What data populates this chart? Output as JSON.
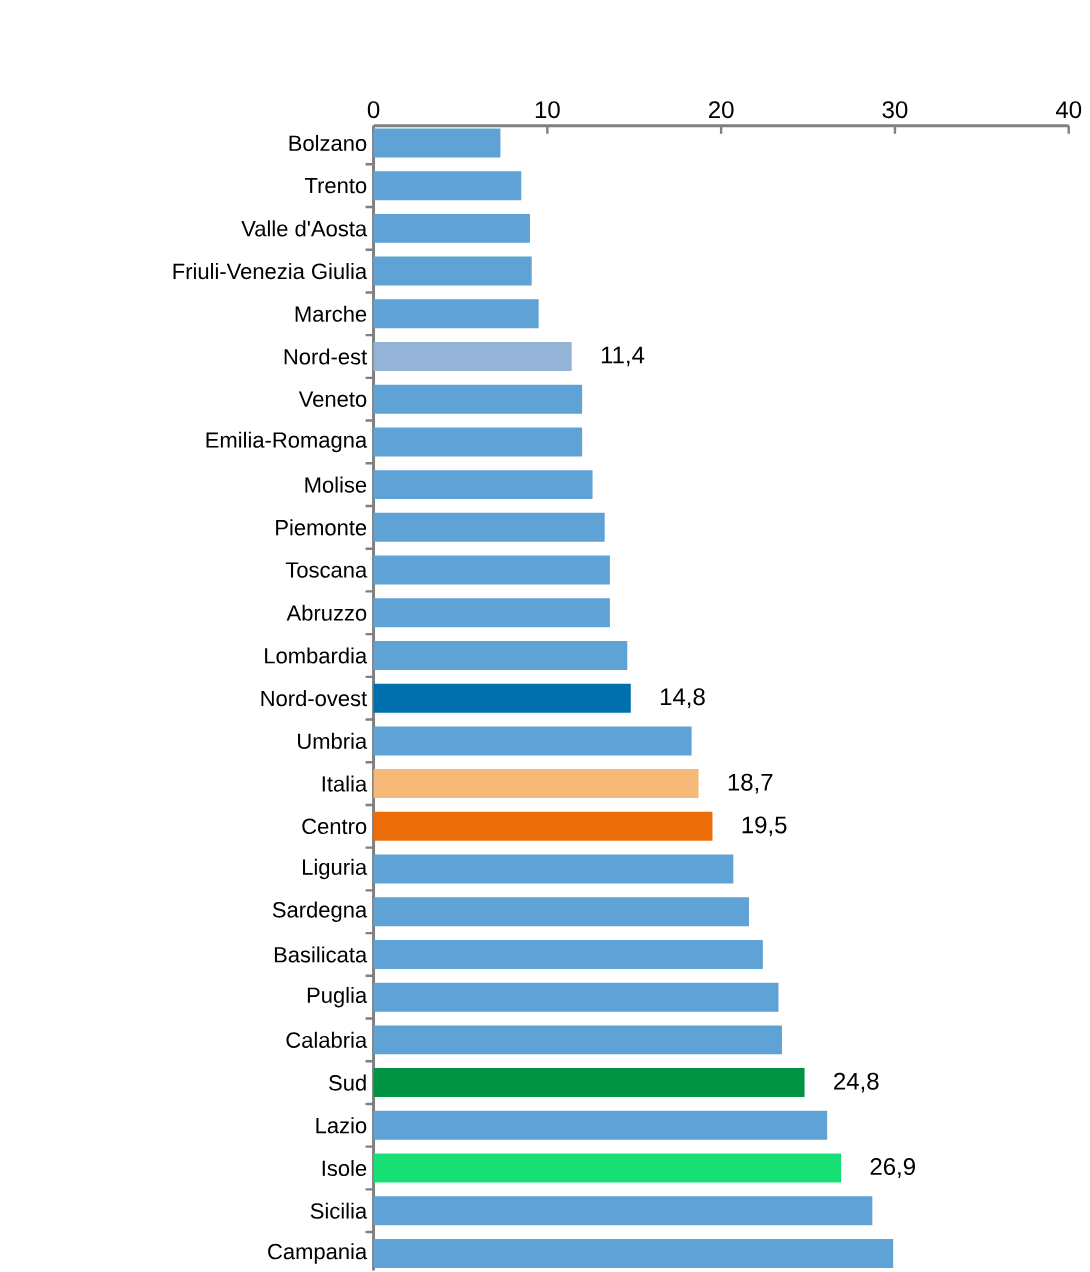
{
  "chart_data": {
    "type": "bar",
    "orientation": "horizontal",
    "categories": [
      "Bolzano",
      "Trento",
      "Valle d'Aosta",
      "Friuli-Venezia Giulia",
      "Marche",
      "Nord-est",
      "Veneto",
      "Emilia-Romagna",
      "Molise",
      "Piemonte",
      "Toscana",
      "Abruzzo",
      "Lombardia",
      "Nord-ovest",
      "Umbria",
      "Italia",
      "Centro",
      "Liguria",
      "Sardegna",
      "Basilicata",
      "Puglia",
      "Calabria",
      "Sud",
      "Lazio",
      "Isole",
      "Sicilia",
      "Campania"
    ],
    "values": [
      7.3,
      8.5,
      9.0,
      9.1,
      9.5,
      11.4,
      12.0,
      12.0,
      12.6,
      13.3,
      13.6,
      13.6,
      14.6,
      14.8,
      18.3,
      18.7,
      19.5,
      20.7,
      21.6,
      22.4,
      23.3,
      23.5,
      24.8,
      26.1,
      26.9,
      28.7,
      29.9
    ],
    "colors": [
      "#5fa3d6",
      "#5fa3d6",
      "#5fa3d6",
      "#5fa3d6",
      "#5fa3d6",
      "#95b3d7",
      "#5fa3d6",
      "#5fa3d6",
      "#5fa3d6",
      "#5fa3d6",
      "#5fa3d6",
      "#5fa3d6",
      "#5fa3d6",
      "#0070ac",
      "#5fa3d6",
      "#f5b877",
      "#ec6c09",
      "#5fa3d6",
      "#5fa3d6",
      "#5fa3d6",
      "#5fa3d6",
      "#5fa3d6",
      "#009444",
      "#5fa3d6",
      "#18df74",
      "#5fa3d6",
      "#5fa3d6"
    ],
    "value_labels": [
      null,
      null,
      null,
      null,
      null,
      "11,4",
      null,
      null,
      null,
      null,
      null,
      null,
      null,
      "14,8",
      null,
      "18,7",
      "19,5",
      null,
      null,
      null,
      null,
      null,
      "24,8",
      null,
      "26,9",
      null,
      null
    ],
    "xlim": [
      0,
      40
    ],
    "xticks": [
      0,
      10,
      20,
      30,
      40
    ]
  }
}
